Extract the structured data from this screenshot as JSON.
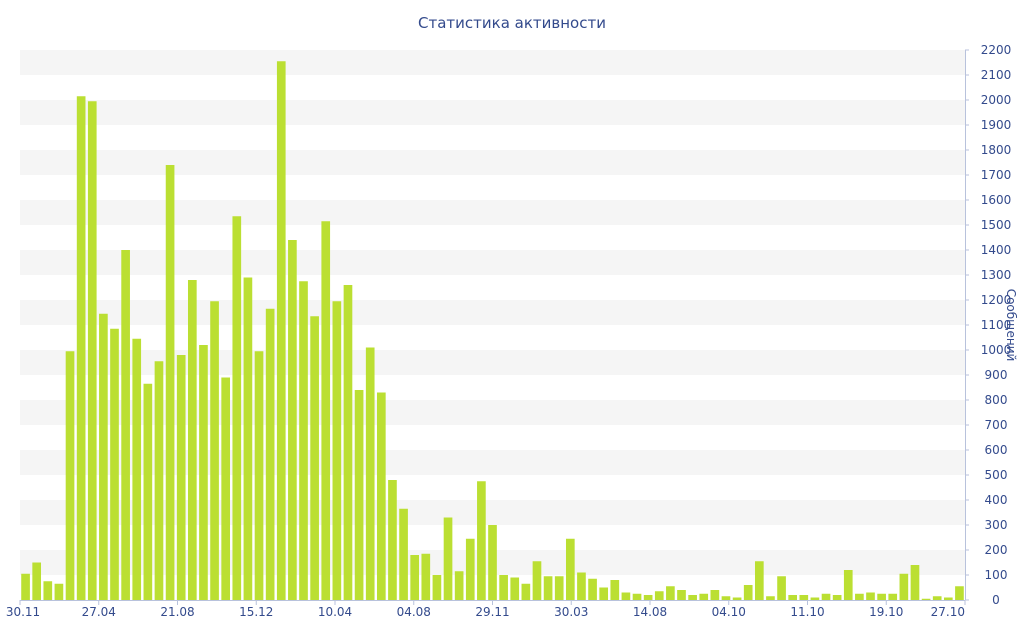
{
  "chart_data": {
    "type": "bar",
    "title": "Статистика активности",
    "ylabel": "Сообщений",
    "ylim": [
      0,
      2200
    ],
    "y_ticks": [
      0,
      100,
      200,
      300,
      400,
      500,
      600,
      700,
      800,
      900,
      1000,
      1100,
      1200,
      1300,
      1400,
      1500,
      1600,
      1700,
      1800,
      1900,
      2000,
      2100,
      2200
    ],
    "y_axis_position": "right",
    "x_tick_labels": [
      "30.11",
      "27.04",
      "21.08",
      "15.12",
      "10.04",
      "04.08",
      "29.11",
      "30.03",
      "14.08",
      "04.10",
      "11.10",
      "19.10",
      "27.10"
    ],
    "values": [
      105,
      150,
      75,
      65,
      995,
      2015,
      1995,
      1145,
      1085,
      1400,
      1045,
      865,
      955,
      1740,
      980,
      1280,
      1020,
      1195,
      890,
      1535,
      1290,
      995,
      1165,
      2155,
      1440,
      1275,
      1135,
      1515,
      1195,
      1260,
      840,
      1010,
      830,
      480,
      365,
      180,
      185,
      100,
      330,
      115,
      245,
      475,
      300,
      100,
      90,
      65,
      155,
      95,
      95,
      245,
      110,
      85,
      50,
      80,
      30,
      25,
      20,
      35,
      55,
      40,
      20,
      25,
      40,
      15,
      10,
      60,
      155,
      15,
      95,
      20,
      20,
      10,
      25,
      20,
      120,
      25,
      30,
      25,
      25,
      105,
      140,
      5,
      15,
      10,
      55
    ],
    "colors": {
      "bar": "#bbdf32",
      "band": "#f5f5f5",
      "text": "#334a8c",
      "axis": "#b8c2dc"
    }
  }
}
